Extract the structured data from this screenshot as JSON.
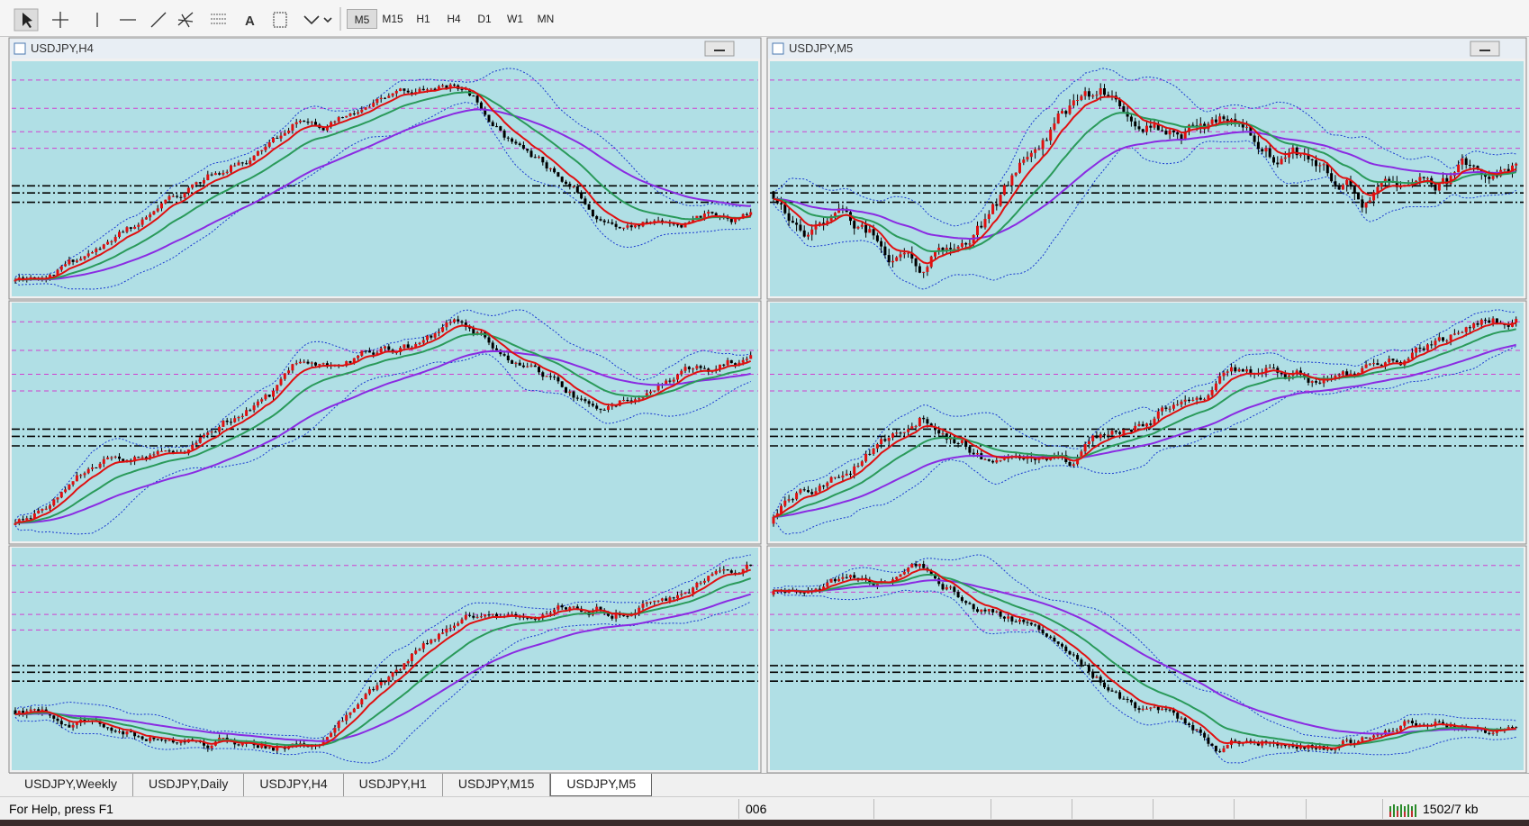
{
  "toolbar": {
    "timeframes": [
      "M5",
      "M15",
      "H1",
      "H4",
      "D1",
      "W1",
      "MN"
    ]
  },
  "windows": [
    {
      "title": "USDJPY,H4"
    },
    {
      "title": "USDJPY,M5"
    }
  ],
  "tabs": [
    "USDJPY,Weekly",
    "USDJPY,Daily",
    "USDJPY,H4",
    "USDJPY,H1",
    "USDJPY,M15",
    "USDJPY,M5"
  ],
  "status": {
    "help": "For Help, press F1",
    "field": "006",
    "memory": "1502/7 kb"
  }
}
